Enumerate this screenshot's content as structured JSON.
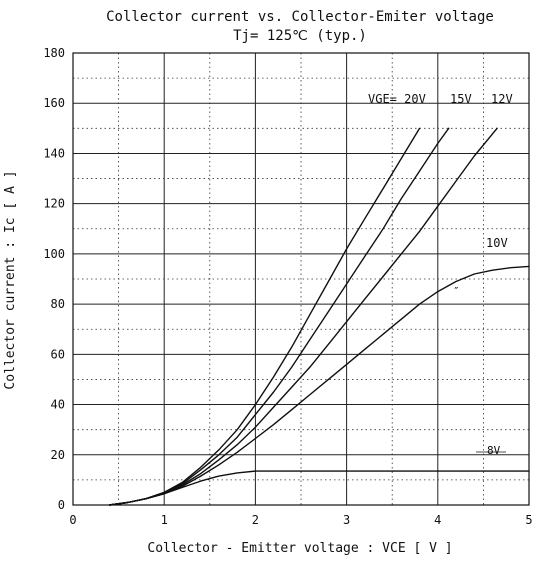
{
  "chart_data": {
    "type": "line",
    "title": "Collector current  vs.  Collector-Emiter voltage",
    "subtitle": "Tj= 125℃  (typ.)",
    "xlabel": "Collector - Emitter voltage  :  VCE  [ V ]",
    "ylabel": "Collector current  :  Ic  [ A ]",
    "xlim": [
      0,
      5
    ],
    "ylim": [
      0,
      180
    ],
    "xticks": [
      0,
      1,
      2,
      3,
      4,
      5
    ],
    "yticks": [
      0,
      20,
      40,
      60,
      80,
      100,
      120,
      140,
      160,
      180
    ],
    "grid": true,
    "series": [
      {
        "name": "VGE= 20V",
        "x": [
          0.4,
          0.6,
          0.8,
          1.0,
          1.2,
          1.4,
          1.6,
          1.8,
          2.0,
          2.2,
          2.4,
          2.6,
          2.8,
          3.0,
          3.2,
          3.4,
          3.6,
          3.8
        ],
        "y": [
          0,
          1,
          2.5,
          5,
          9,
          15,
          22,
          30,
          40,
          51,
          63,
          76,
          89,
          102,
          114,
          126,
          138,
          150
        ]
      },
      {
        "name": "15V",
        "x": [
          0.4,
          0.6,
          0.8,
          1.0,
          1.2,
          1.4,
          1.6,
          1.8,
          2.0,
          2.2,
          2.4,
          2.6,
          2.8,
          3.0,
          3.2,
          3.4,
          3.6,
          3.8,
          4.0,
          4.12
        ],
        "y": [
          0,
          1,
          2.5,
          5,
          8.5,
          14,
          20,
          27,
          36,
          45,
          55,
          66,
          77,
          88,
          99,
          110,
          122,
          133,
          144,
          150
        ]
      },
      {
        "name": "12V",
        "x": [
          0.4,
          0.6,
          0.8,
          1.0,
          1.2,
          1.4,
          1.6,
          1.8,
          2.0,
          2.2,
          2.4,
          2.6,
          2.8,
          3.0,
          3.2,
          3.4,
          3.6,
          3.8,
          4.0,
          4.2,
          4.4,
          4.65
        ],
        "y": [
          0,
          1,
          2.5,
          4.5,
          8,
          12.5,
          18,
          24,
          31,
          39,
          47,
          55,
          64,
          73,
          82,
          91,
          100,
          109,
          119,
          129,
          139,
          150
        ]
      },
      {
        "name": "10V",
        "x": [
          0.4,
          0.6,
          0.8,
          1.0,
          1.2,
          1.4,
          1.6,
          1.8,
          2.0,
          2.2,
          2.4,
          2.6,
          2.8,
          3.0,
          3.2,
          3.4,
          3.6,
          3.8,
          4.0,
          4.2,
          4.4,
          4.6,
          4.8,
          5.0
        ],
        "y": [
          0,
          1,
          2.5,
          4.5,
          7.5,
          11.5,
          16,
          21,
          26.5,
          32,
          38,
          44,
          50,
          56,
          62,
          68,
          74,
          80,
          85,
          89,
          92,
          93.5,
          94.5,
          95
        ]
      },
      {
        "name": "8V",
        "x": [
          0.4,
          0.6,
          0.8,
          1.0,
          1.2,
          1.4,
          1.6,
          1.8,
          2.0,
          2.5,
          3.0,
          3.5,
          4.0,
          4.5,
          5.0
        ],
        "y": [
          0,
          1,
          2.5,
          4.5,
          7,
          9.5,
          11.5,
          12.8,
          13.5,
          13.5,
          13.5,
          13.5,
          13.5,
          13.5,
          13.5
        ]
      }
    ],
    "annotations": [
      {
        "text": "8V"
      },
      {
        "text": "″"
      }
    ]
  }
}
